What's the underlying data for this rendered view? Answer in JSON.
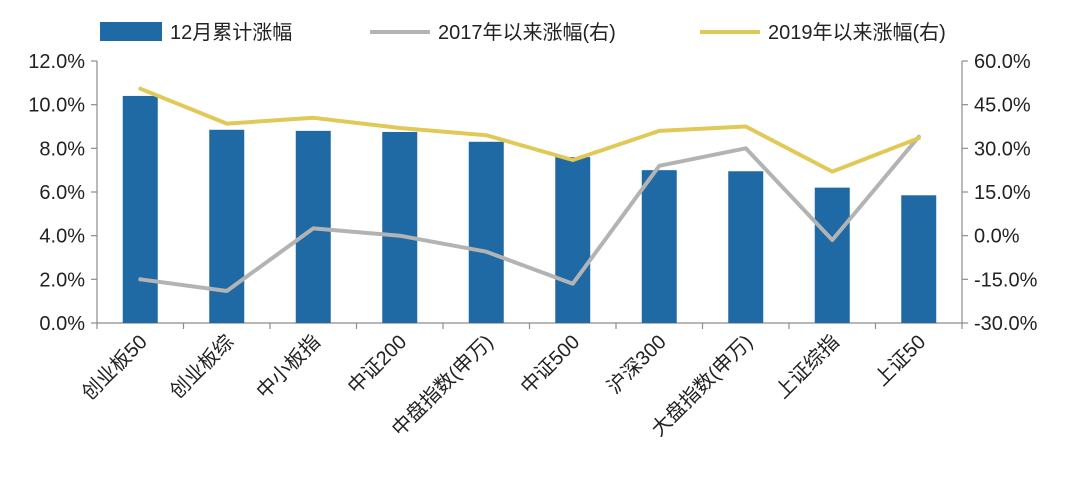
{
  "chart_data": {
    "type": "bar",
    "categories": [
      "创业板50",
      "创业板综",
      "中小板指",
      "中证200",
      "中盘指数(申万)",
      "中证500",
      "沪深300",
      "大盘指数(申万)",
      "上证综指",
      "上证50"
    ],
    "series": [
      {
        "name": "12月累计涨幅",
        "type": "bar",
        "axis": "left",
        "color": "#1f6aa5",
        "values": [
          10.4,
          8.85,
          8.8,
          8.75,
          8.3,
          7.6,
          7.0,
          6.95,
          6.2,
          5.85
        ]
      },
      {
        "name": "2017年以来涨幅(右)",
        "type": "line",
        "axis": "right",
        "color": "#b3b3b3",
        "values": [
          -15.0,
          -19.0,
          2.5,
          0.0,
          -5.5,
          -16.5,
          24.0,
          30.0,
          -1.5,
          34.0
        ]
      },
      {
        "name": "2019年以来涨幅(右)",
        "type": "line",
        "axis": "right",
        "color": "#e1c958",
        "values": [
          50.5,
          38.5,
          40.5,
          37.0,
          34.5,
          26.0,
          36.0,
          37.5,
          22.0,
          33.5
        ]
      }
    ],
    "left_axis": {
      "ylim": [
        0,
        12
      ],
      "ticks": [
        "0.0%",
        "2.0%",
        "4.0%",
        "6.0%",
        "8.0%",
        "10.0%",
        "12.0%"
      ]
    },
    "right_axis": {
      "ylim": [
        -30,
        60
      ],
      "ticks": [
        "-30.0%",
        "-15.0%",
        "0.0%",
        "15.0%",
        "30.0%",
        "45.0%",
        "60.0%"
      ]
    },
    "title": "",
    "xlabel": "",
    "legend_position": "top"
  }
}
